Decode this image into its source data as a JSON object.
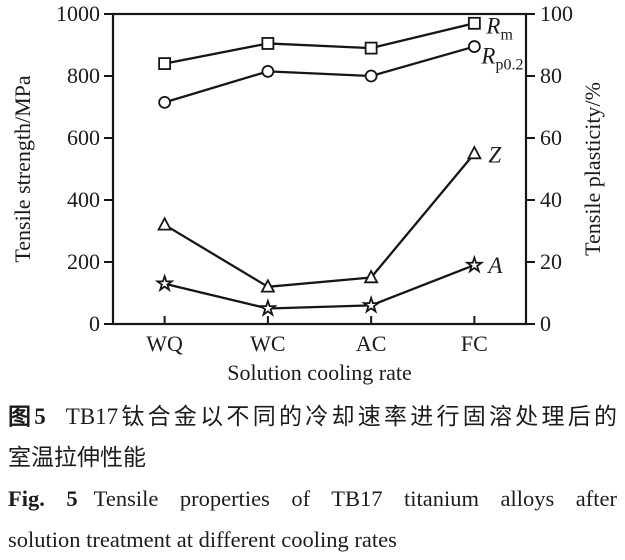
{
  "chart_data": {
    "type": "line",
    "categories": [
      "WQ",
      "WC",
      "AC",
      "FC"
    ],
    "xlabel": "Solution cooling rate",
    "ylabel_left": "Tensile strength/MPa",
    "ylabel_right": "Tensile plasticity/%",
    "ylim_left": [
      0,
      1000
    ],
    "yticks_left": [
      0,
      200,
      400,
      600,
      800,
      1000
    ],
    "ylim_right": [
      0,
      100
    ],
    "yticks_right": [
      0,
      20,
      40,
      60,
      80,
      100
    ],
    "grid": false,
    "legend_position": "labels-at-line-ends",
    "line_color": "#161616",
    "marker_fill": "#ffffff",
    "series": [
      {
        "name": "Rm",
        "label_main": "R",
        "label_sub": "m",
        "axis": "left",
        "marker": "square",
        "values": [
          840,
          905,
          890,
          970
        ],
        "label_offset": [
          12,
          10
        ]
      },
      {
        "name": "Rp0.2",
        "label_main": "R",
        "label_sub": "p0.2",
        "axis": "left",
        "marker": "circle",
        "values": [
          715,
          815,
          800,
          895
        ],
        "label_offset": [
          7,
          17
        ]
      },
      {
        "name": "Z",
        "label_main": "Z",
        "label_sub": "",
        "axis": "right",
        "marker": "triangle",
        "values": [
          32,
          12,
          15,
          55
        ],
        "label_offset": [
          14,
          9
        ]
      },
      {
        "name": "A",
        "label_main": "A",
        "label_sub": "",
        "axis": "right",
        "marker": "star",
        "values": [
          13,
          5,
          6,
          19
        ],
        "label_offset": [
          14,
          8
        ]
      }
    ]
  },
  "caption": {
    "cn_label": "图5",
    "cn_line1": "TB17钛合金以不同的冷却速率进行固溶处理后的",
    "cn_line2": "室温拉伸性能",
    "en_label": "Fig. 5",
    "en_line1": "Tensile properties of TB17 titanium alloys after",
    "en_line2": "solution treatment at different cooling rates"
  }
}
